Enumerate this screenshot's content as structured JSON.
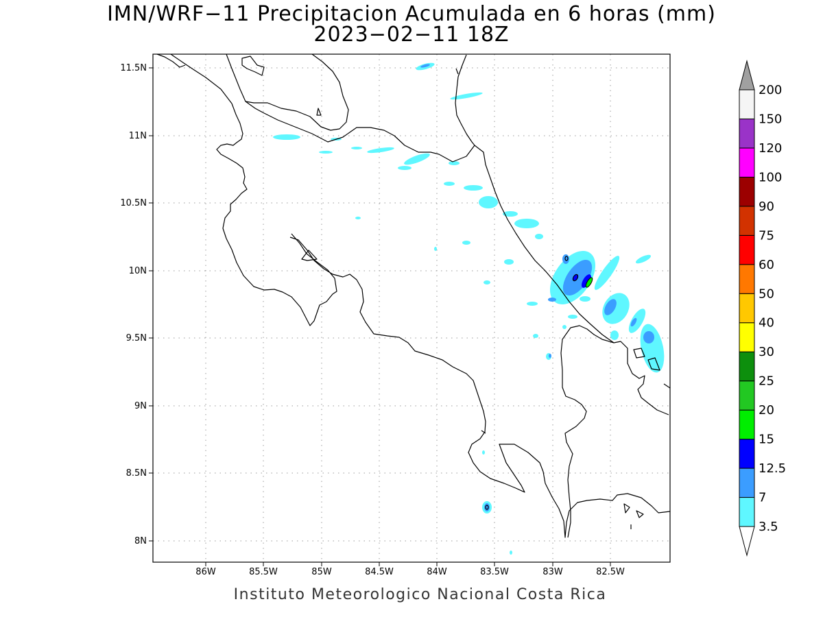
{
  "title": {
    "line1": "IMN/WRF−11 Precipitacion Acumulada en 6 horas (mm)",
    "line2": "2023−02−11 18Z"
  },
  "credit": "Instituto Meteorologico Nacional Costa Rica",
  "chart_data": {
    "type": "map",
    "variable": "6-hour accumulated precipitation (mm)",
    "lon_range": [
      -86.47,
      -82.0
    ],
    "lat_range": [
      7.85,
      11.6
    ],
    "grid": true,
    "x_ticks": [
      "86W",
      "85.5W",
      "85W",
      "84.5W",
      "84W",
      "83.5W",
      "83W",
      "82.5W"
    ],
    "y_ticks": [
      "11.5N",
      "11N",
      "10.5N",
      "10N",
      "9.5N",
      "9N",
      "8.5N",
      "8N"
    ],
    "colorbar": {
      "levels": [
        "3.5",
        "7",
        "12.5",
        "15",
        "20",
        "25",
        "30",
        "40",
        "50",
        "60",
        "75",
        "90",
        "100",
        "120",
        "150",
        "200"
      ],
      "colors": [
        "#ffffff",
        "#5ff7ff",
        "#3b9dff",
        "#0000ff",
        "#00ee00",
        "#22c822",
        "#0d8f0d",
        "#ffff00",
        "#ffc800",
        "#ff7800",
        "#ff0000",
        "#d23200",
        "#9c0000",
        "#ff00ff",
        "#9a33c8",
        "#f5f5f5",
        "#a0a0a0"
      ]
    }
  }
}
